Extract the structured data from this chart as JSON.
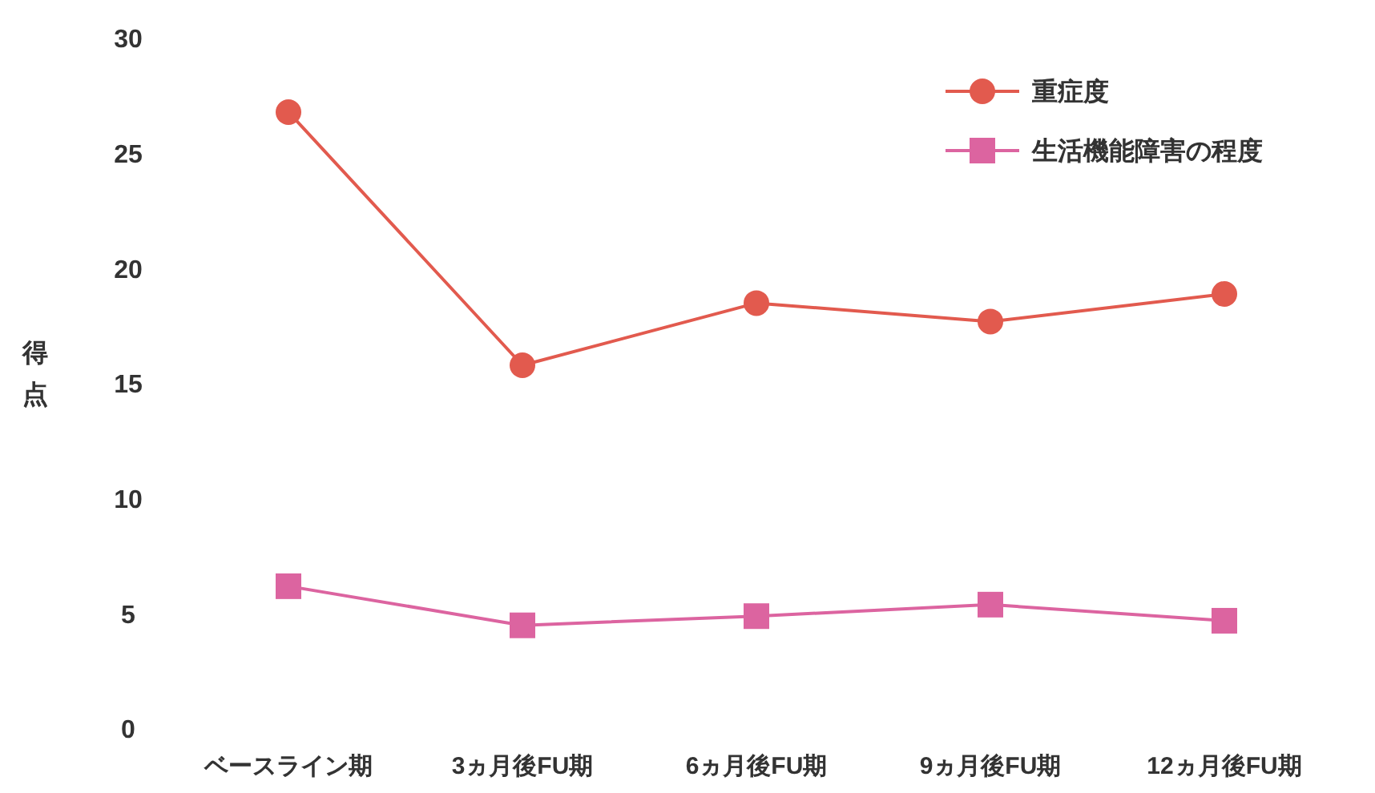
{
  "chart_data": {
    "type": "line",
    "ylabel": "得点",
    "categories": [
      "ベースライン期",
      "3ヵ月後FU期",
      "6ヵ月後FU期",
      "9ヵ月後FU期",
      "12ヵ月後FU期"
    ],
    "series": [
      {
        "name": "重症度",
        "color": "#e25a4e",
        "marker": "circle",
        "values": [
          26.8,
          15.8,
          18.5,
          17.7,
          18.9
        ]
      },
      {
        "name": "生活機能障害の程度",
        "color": "#dc64a0",
        "marker": "square",
        "values": [
          6.2,
          4.5,
          4.9,
          5.4,
          4.7
        ]
      }
    ],
    "ylim": [
      0,
      30
    ],
    "yticks": [
      0,
      5,
      10,
      15,
      20,
      25,
      30
    ],
    "grid": false,
    "legend": "top right"
  }
}
